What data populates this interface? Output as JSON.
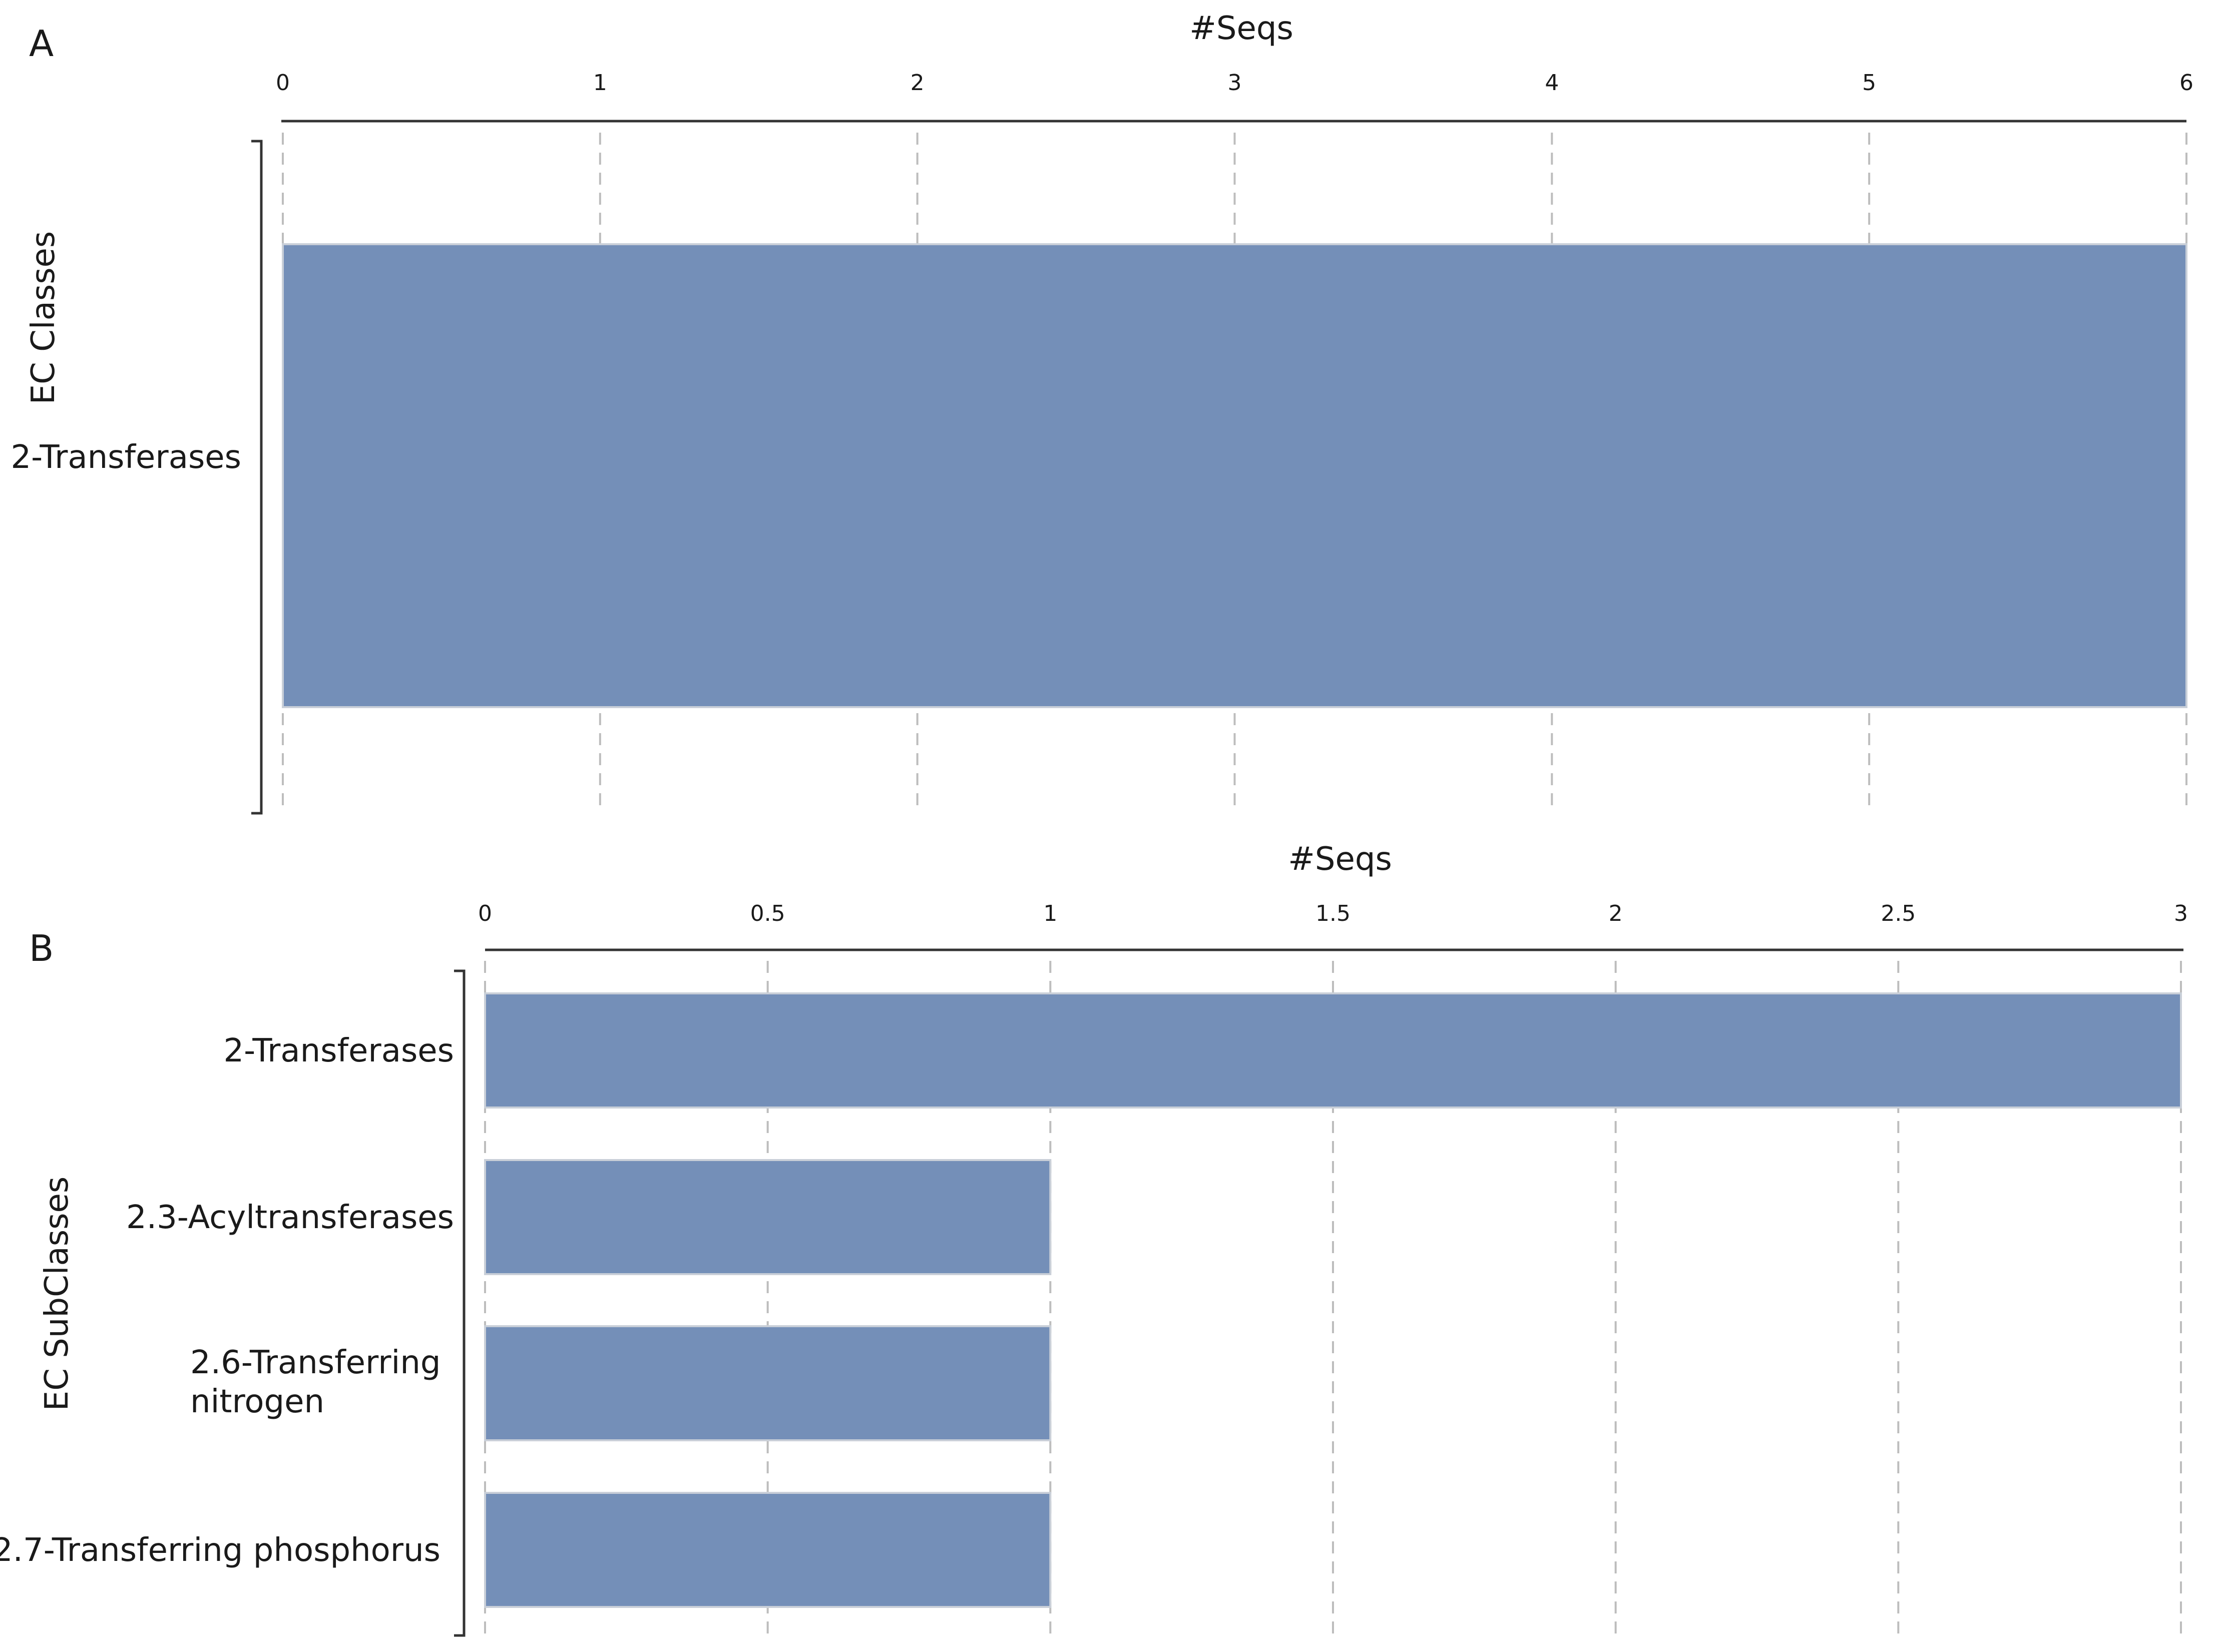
{
  "colors": {
    "bar": "#748fb8"
  },
  "chart_data": [
    {
      "panel": "A",
      "type": "bar",
      "orientation": "horizontal",
      "xlabel": "#Seqs",
      "ylabel": "EC Classes",
      "xlim": [
        0,
        6
      ],
      "xticks": [
        "0",
        "1",
        "2",
        "3",
        "4",
        "5",
        "6"
      ],
      "categories": [
        "2-Transferases"
      ],
      "values": [
        6
      ],
      "grid": true,
      "legend": "none"
    },
    {
      "panel": "B",
      "type": "bar",
      "orientation": "horizontal",
      "xlabel": "#Seqs",
      "ylabel": "EC SubClasses",
      "xlim": [
        0,
        3
      ],
      "xticks": [
        "0",
        "0.5",
        "1",
        "1.5",
        "2",
        "2.5",
        "3"
      ],
      "categories": [
        "2-Transferases",
        "2.3-Acyltransferases",
        "2.6-Transferring nitrogen",
        "2.7-Transferring phosphorus"
      ],
      "values": [
        3,
        1,
        1,
        1
      ],
      "grid": true,
      "legend": "none"
    }
  ]
}
